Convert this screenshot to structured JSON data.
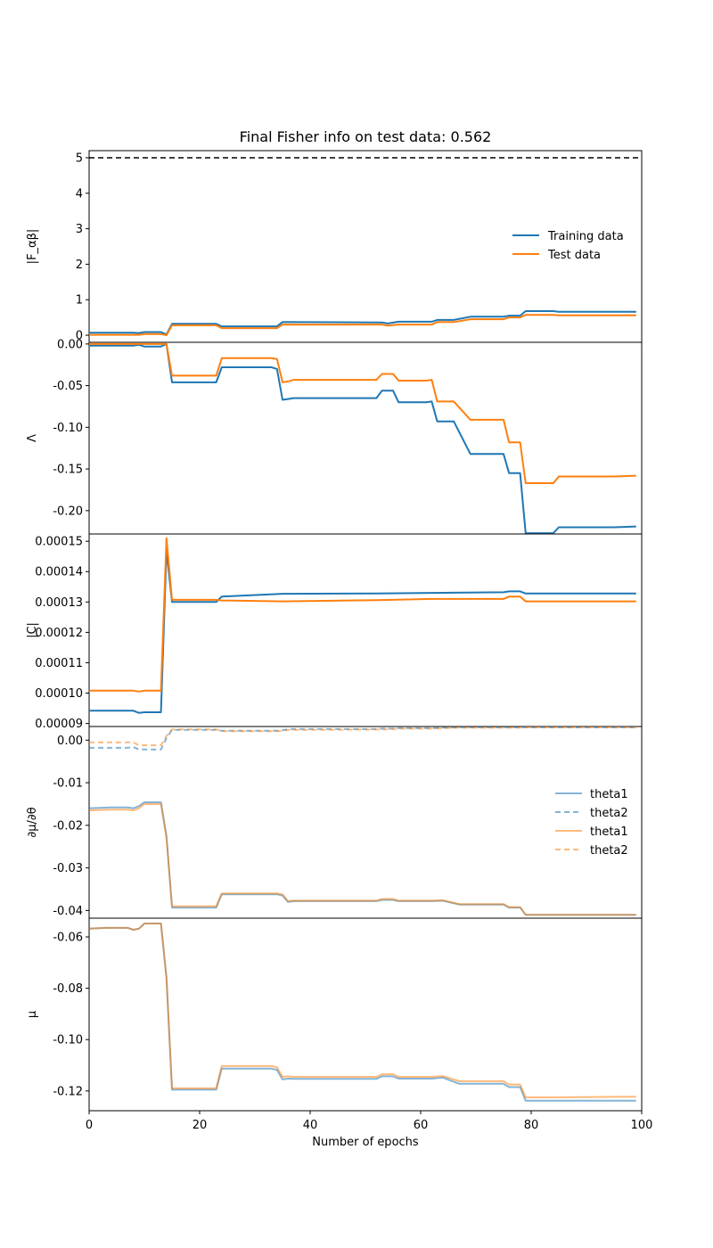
{
  "colors": {
    "training": "#1f77b4",
    "test": "#ff7f0e",
    "reference": "#000000",
    "frame": "#000000"
  },
  "figure": {
    "title": "Final Fisher info on test data: 0.562",
    "xlabel": "Number of epochs"
  },
  "chart_data": [
    {
      "type": "line",
      "panel": "fisher_determinant",
      "title": "Final Fisher info on test data: 0.562",
      "ylabel": "|F_αβ|",
      "xlim": [
        0,
        100
      ],
      "ylim": [
        -0.2,
        5.2
      ],
      "yticks": [
        "0",
        "1",
        "2",
        "3",
        "4",
        "5"
      ],
      "grid": false,
      "legend": {
        "placement": "right",
        "entries": [
          "Training data",
          "Test data"
        ]
      },
      "reference_line": {
        "y": 5,
        "style": "dashed"
      },
      "x_epochs": [
        0,
        8,
        9,
        10,
        13,
        14,
        15,
        23,
        24,
        34,
        35,
        53,
        54,
        56,
        62,
        63,
        66,
        69,
        75,
        76,
        78,
        79,
        84,
        85,
        95,
        99
      ],
      "series": [
        {
          "name": "Training data",
          "values": [
            0.07,
            0.07,
            0.06,
            0.09,
            0.09,
            0.02,
            0.32,
            0.32,
            0.25,
            0.25,
            0.37,
            0.36,
            0.33,
            0.38,
            0.38,
            0.43,
            0.43,
            0.52,
            0.52,
            0.55,
            0.55,
            0.68,
            0.68,
            0.66,
            0.66,
            0.66
          ]
        },
        {
          "name": "Test data",
          "values": [
            0.01,
            0.01,
            0.01,
            0.03,
            0.03,
            0.0,
            0.28,
            0.28,
            0.2,
            0.2,
            0.3,
            0.3,
            0.27,
            0.3,
            0.3,
            0.37,
            0.37,
            0.45,
            0.45,
            0.5,
            0.5,
            0.57,
            0.57,
            0.56,
            0.56,
            0.56
          ]
        }
      ]
    },
    {
      "type": "line",
      "panel": "regularization",
      "ylabel": "Λ",
      "xlim": [
        0,
        100
      ],
      "ylim": [
        -0.228,
        0.002
      ],
      "yticks": [
        "0.00",
        "-0.05",
        "-0.10",
        "-0.15",
        "-0.20"
      ],
      "grid": false,
      "x_epochs": [
        0,
        8,
        9,
        10,
        13,
        14,
        15,
        23,
        24,
        33,
        34,
        35,
        36,
        37,
        52,
        53,
        55,
        56,
        61,
        62,
        63,
        66,
        69,
        75,
        76,
        78,
        79,
        84,
        85,
        95,
        99
      ],
      "series": [
        {
          "name": "Training data",
          "values": [
            -0.002,
            -0.002,
            -0.001,
            -0.003,
            -0.003,
            0.0,
            -0.046,
            -0.046,
            -0.028,
            -0.028,
            -0.03,
            -0.067,
            -0.066,
            -0.065,
            -0.065,
            -0.056,
            -0.056,
            -0.07,
            -0.07,
            -0.069,
            -0.093,
            -0.093,
            -0.132,
            -0.132,
            -0.155,
            -0.155,
            -0.227,
            -0.227,
            -0.22,
            -0.22,
            -0.219
          ]
        },
        {
          "name": "Test data",
          "values": [
            0.0,
            0.0,
            0.0,
            0.0,
            0.0,
            0.0,
            -0.038,
            -0.038,
            -0.017,
            -0.017,
            -0.018,
            -0.046,
            -0.045,
            -0.043,
            -0.043,
            -0.036,
            -0.036,
            -0.044,
            -0.044,
            -0.043,
            -0.069,
            -0.069,
            -0.091,
            -0.091,
            -0.118,
            -0.118,
            -0.167,
            -0.167,
            -0.159,
            -0.159,
            -0.158
          ]
        }
      ]
    },
    {
      "type": "line",
      "panel": "covariance_determinant",
      "ylabel": "|C|",
      "xlim": [
        0,
        100
      ],
      "ylim": [
        8.9e-05,
        0.0001524
      ],
      "yticks": [
        "0.00009",
        "0.00010",
        "0.00011",
        "0.00012",
        "0.00013",
        "0.00014",
        "0.00015"
      ],
      "grid": false,
      "x_epochs": [
        0,
        8,
        9,
        10,
        13,
        14,
        15,
        23,
        24,
        35,
        52,
        62,
        75,
        76,
        78,
        79,
        99
      ],
      "series": [
        {
          "name": "Training data",
          "values": [
            9.42e-05,
            9.42e-05,
            9.35e-05,
            9.37e-05,
            9.37e-05,
            0.000147,
            0.00013,
            0.00013,
            0.0001318,
            0.0001327,
            0.0001328,
            0.000133,
            0.0001332,
            0.0001335,
            0.0001335,
            0.0001328,
            0.0001328
          ]
        },
        {
          "name": "Test data",
          "values": [
            0.0001008,
            0.0001008,
            0.0001005,
            0.0001008,
            0.0001008,
            0.000151,
            0.0001307,
            0.0001307,
            0.0001305,
            0.0001302,
            0.0001306,
            0.000131,
            0.000131,
            0.0001318,
            0.0001318,
            0.0001302,
            0.0001302
          ]
        }
      ]
    },
    {
      "type": "line",
      "panel": "mean_derivative",
      "ylabel": "∂μ/∂θ",
      "xlim": [
        0,
        100
      ],
      "ylim": [
        -0.0418,
        0.0032
      ],
      "yticks": [
        "0.00",
        "-0.01",
        "-0.02",
        "-0.03",
        "-0.04"
      ],
      "grid": false,
      "legend": {
        "placement": "right",
        "entries": [
          "theta1",
          "theta2",
          "theta1",
          "theta2"
        ]
      },
      "x_epochs": [
        0,
        4,
        7,
        8,
        9,
        10,
        13,
        14,
        15,
        23,
        24,
        34,
        35,
        36,
        37,
        52,
        53,
        55,
        56,
        62,
        64,
        67,
        75,
        76,
        78,
        79,
        84,
        99
      ],
      "series": [
        {
          "name": "theta1",
          "values": [
            -0.016,
            -0.0158,
            -0.0158,
            -0.016,
            -0.0155,
            -0.0146,
            -0.0146,
            -0.0225,
            -0.0393,
            -0.0393,
            -0.0362,
            -0.0362,
            -0.0365,
            -0.038,
            -0.0378,
            -0.0378,
            -0.0375,
            -0.0375,
            -0.0378,
            -0.0378,
            -0.0377,
            -0.0386,
            -0.0386,
            -0.0393,
            -0.0393,
            -0.041,
            -0.041,
            -0.041
          ]
        },
        {
          "name": "theta2",
          "values": [
            -0.0018,
            -0.0018,
            -0.0018,
            -0.0016,
            -0.0022,
            -0.0022,
            -0.0022,
            0.0005,
            0.0024,
            0.0024,
            0.0022,
            0.0022,
            0.0023,
            0.0026,
            0.0026,
            0.0026,
            0.0027,
            0.0027,
            0.0028,
            0.0028,
            0.0029,
            0.003,
            0.003,
            0.003,
            0.003,
            0.003,
            0.003,
            0.003
          ]
        },
        {
          "name": "theta1",
          "values": [
            -0.0165,
            -0.0163,
            -0.0163,
            -0.0165,
            -0.016,
            -0.015,
            -0.015,
            -0.023,
            -0.039,
            -0.039,
            -0.036,
            -0.036,
            -0.0362,
            -0.0378,
            -0.0377,
            -0.0377,
            -0.0373,
            -0.0373,
            -0.0377,
            -0.0377,
            -0.0376,
            -0.0385,
            -0.0385,
            -0.0392,
            -0.0392,
            -0.041,
            -0.041,
            -0.041
          ]
        },
        {
          "name": "theta2",
          "values": [
            -0.0005,
            -0.0005,
            -0.0005,
            -0.0005,
            -0.0012,
            -0.0012,
            -0.0012,
            0.001,
            0.0025,
            0.0025,
            0.0021,
            0.0021,
            0.0022,
            0.0024,
            0.0024,
            0.0025,
            0.0025,
            0.0026,
            0.0027,
            0.0027,
            0.0028,
            0.0029,
            0.0029,
            0.0029,
            0.0029,
            0.003,
            0.003,
            0.003
          ]
        }
      ]
    },
    {
      "type": "line",
      "panel": "mean",
      "ylabel": "μ",
      "xlim": [
        0,
        100
      ],
      "ylim": [
        -0.1277,
        -0.0527
      ],
      "yticks": [
        "-0.06",
        "-0.08",
        "-0.10",
        "-0.12"
      ],
      "grid": false,
      "x_epochs": [
        0,
        3,
        7,
        8,
        9,
        10,
        13,
        14,
        15,
        23,
        24,
        33,
        34,
        35,
        36,
        37,
        52,
        53,
        55,
        56,
        62,
        64,
        67,
        75,
        76,
        78,
        79,
        84,
        99
      ],
      "series": [
        {
          "name": "Training data",
          "values": [
            -0.0568,
            -0.0565,
            -0.0565,
            -0.0572,
            -0.0568,
            -0.0548,
            -0.0548,
            -0.076,
            -0.1195,
            -0.1195,
            -0.1113,
            -0.1113,
            -0.1118,
            -0.1155,
            -0.1152,
            -0.1153,
            -0.1153,
            -0.1143,
            -0.1143,
            -0.1152,
            -0.1152,
            -0.1148,
            -0.1172,
            -0.1172,
            -0.1185,
            -0.1185,
            -0.1238,
            -0.1238,
            -0.1238
          ]
        },
        {
          "name": "Test data",
          "values": [
            -0.0568,
            -0.0565,
            -0.0565,
            -0.0572,
            -0.0568,
            -0.0548,
            -0.0548,
            -0.076,
            -0.119,
            -0.119,
            -0.1103,
            -0.1103,
            -0.1108,
            -0.1145,
            -0.1143,
            -0.1145,
            -0.1145,
            -0.1135,
            -0.1135,
            -0.1145,
            -0.1145,
            -0.1142,
            -0.1162,
            -0.1162,
            -0.1175,
            -0.1175,
            -0.1225,
            -0.1225,
            -0.1222
          ]
        }
      ]
    }
  ]
}
